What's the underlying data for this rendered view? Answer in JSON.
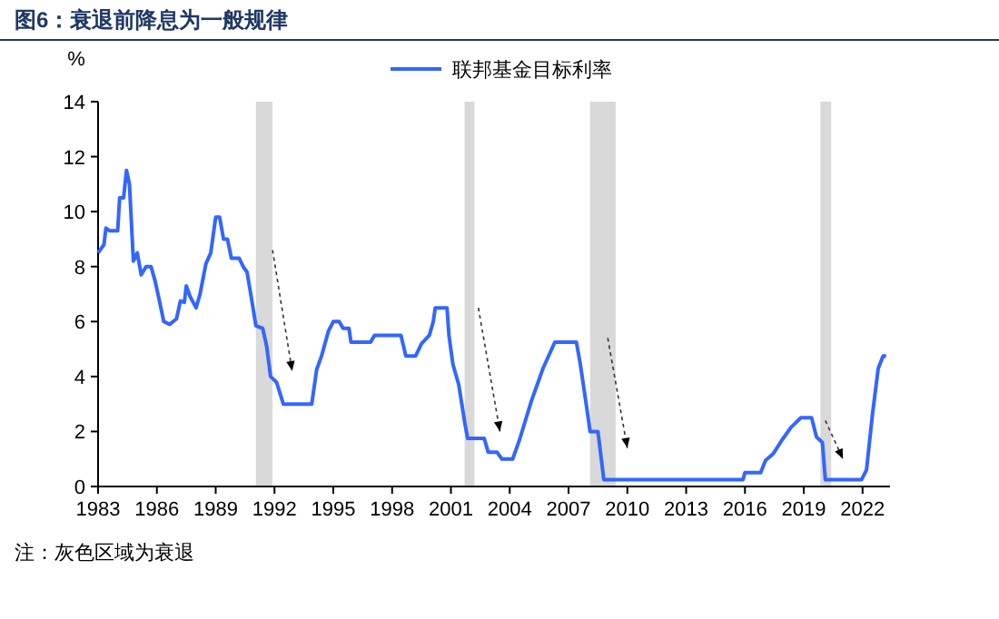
{
  "chart_data": {
    "type": "line",
    "title": "图6：衰退前降息为一般规律",
    "ylabel": "%",
    "annotations": [
      "注：灰色区域为衰退"
    ],
    "x": [
      1983,
      1983.3,
      1983.4,
      1983.6,
      1984.0,
      1984.1,
      1984.3,
      1984.45,
      1984.6,
      1984.8,
      1985.0,
      1985.2,
      1985.45,
      1985.7,
      1985.9,
      1986.1,
      1986.35,
      1986.65,
      1987.0,
      1987.2,
      1987.4,
      1987.5,
      1987.7,
      1988.0,
      1988.2,
      1988.5,
      1988.75,
      1989.0,
      1989.2,
      1989.4,
      1989.6,
      1989.8,
      1990.2,
      1990.4,
      1990.6,
      1990.8,
      1991.05,
      1991.4,
      1991.6,
      1991.8,
      1992.1,
      1992.45,
      1993.9,
      1994.15,
      1994.4,
      1994.75,
      1995.0,
      1995.3,
      1995.5,
      1995.8,
      1995.9,
      1996.9,
      1997.1,
      1998.45,
      1998.7,
      1999.2,
      1999.5,
      1999.9,
      2000.1,
      2000.2,
      2000.8,
      2000.9,
      2001.1,
      2001.4,
      2001.7,
      2001.85,
      2002.3,
      2002.7,
      2002.9,
      2003.35,
      2003.6,
      2004.15,
      2004.5,
      2005.1,
      2005.7,
      2006.3,
      2007.4,
      2007.6,
      2007.9,
      2008.1,
      2008.5,
      2008.8,
      2015.9,
      2016.0,
      2016.8,
      2017.05,
      2017.45,
      2017.9,
      2018.35,
      2018.85,
      2019.4,
      2019.65,
      2019.95,
      2020.1,
      2021.95,
      2022.2,
      2022.5,
      2022.8,
      2023.05,
      2023.2
    ],
    "series": [
      {
        "name": "联邦基金目标利率",
        "color": "#3366ff",
        "values": [
          8.5,
          8.8,
          9.4,
          9.3,
          9.3,
          10.5,
          10.5,
          11.5,
          11.0,
          8.2,
          8.5,
          7.7,
          8.0,
          8.0,
          7.5,
          6.85,
          6.0,
          5.9,
          6.1,
          6.75,
          6.7,
          7.3,
          6.9,
          6.5,
          7.0,
          8.1,
          8.5,
          9.8,
          9.8,
          9.0,
          9.0,
          8.3,
          8.3,
          8.0,
          7.8,
          6.95,
          5.85,
          5.75,
          5.1,
          4.0,
          3.8,
          3.0,
          3.0,
          4.25,
          4.75,
          5.65,
          6.0,
          6.0,
          5.75,
          5.75,
          5.25,
          5.25,
          5.5,
          5.5,
          4.75,
          4.75,
          5.2,
          5.5,
          6.0,
          6.5,
          6.5,
          5.5,
          4.45,
          3.7,
          2.35,
          1.75,
          1.75,
          1.75,
          1.25,
          1.25,
          1.0,
          1.0,
          1.7,
          3.1,
          4.3,
          5.25,
          5.25,
          4.45,
          3.0,
          2.0,
          2.0,
          0.25,
          0.25,
          0.5,
          0.5,
          0.95,
          1.2,
          1.7,
          2.15,
          2.5,
          2.5,
          1.8,
          1.6,
          0.25,
          0.25,
          0.6,
          2.6,
          4.3,
          4.75,
          4.75
        ]
      }
    ],
    "xlim": [
      1983,
      2023.4
    ],
    "xticks": [
      1983,
      1986,
      1989,
      1992,
      1995,
      1998,
      2001,
      2004,
      2007,
      2010,
      2013,
      2016,
      2019,
      2022
    ],
    "ylim": [
      0,
      14
    ],
    "yticks": [
      0,
      2,
      4,
      6,
      8,
      10,
      12,
      14
    ],
    "bands": [
      {
        "axis": "x",
        "from": 1991.05,
        "to": 1991.9,
        "color": "#d9d9d9"
      },
      {
        "axis": "x",
        "from": 2001.7,
        "to": 2002.2,
        "color": "#d9d9d9"
      },
      {
        "axis": "x",
        "from": 2008.1,
        "to": 2009.4,
        "color": "#d9d9d9"
      },
      {
        "axis": "x",
        "from": 2019.85,
        "to": 2020.4,
        "color": "#d9d9d9"
      }
    ],
    "legend": "top",
    "grid": false,
    "marker": "none",
    "line_style": "solid"
  }
}
